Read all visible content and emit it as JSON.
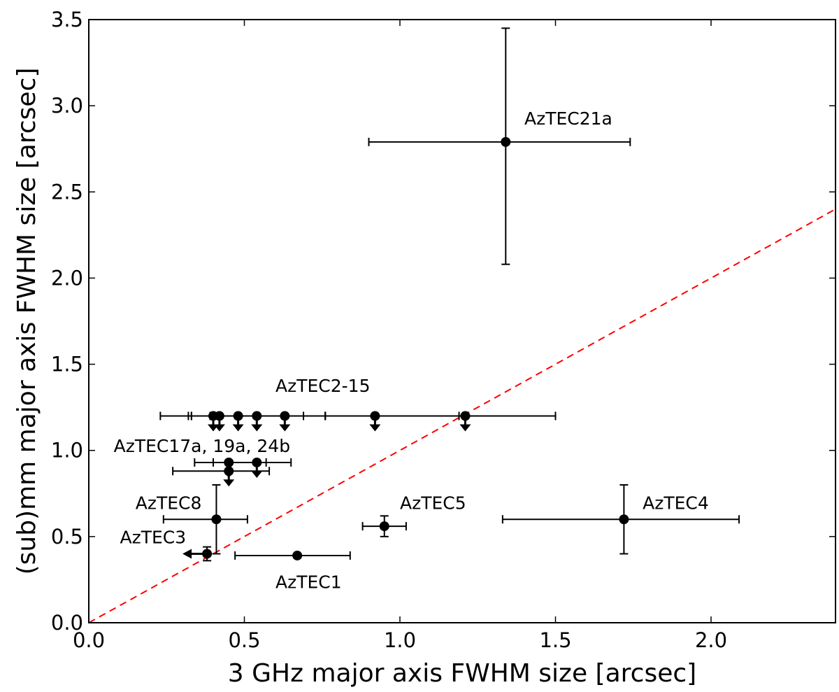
{
  "chart_data": {
    "type": "scatter",
    "xlabel": "3 GHz major axis FWHM size [arcsec]",
    "ylabel": "(sub)mm major axis FWHM size [arcsec]",
    "xlim": [
      0.0,
      2.4
    ],
    "ylim": [
      0.0,
      3.5
    ],
    "x_ticks": [
      "0.0",
      "0.5",
      "1.0",
      "1.5",
      "2.0"
    ],
    "y_ticks": [
      "0.0",
      "0.5",
      "1.0",
      "1.5",
      "2.0",
      "2.5",
      "3.0",
      "3.5"
    ],
    "x_tick_values": [
      0.0,
      0.5,
      1.0,
      1.5,
      2.0
    ],
    "y_tick_values": [
      0.0,
      0.5,
      1.0,
      1.5,
      2.0,
      2.5,
      3.0,
      3.5
    ],
    "reference_line": {
      "style": "dashed",
      "color": "#ff0000",
      "x": [
        0.0,
        2.4
      ],
      "y": [
        0.0,
        2.4
      ]
    },
    "points": [
      {
        "x": 1.34,
        "y": 2.79,
        "xerr": [
          0.44,
          0.4
        ],
        "yerr": [
          0.71,
          0.66
        ],
        "upper_limit": false,
        "left_limit": false
      },
      {
        "x": 1.72,
        "y": 0.6,
        "xerr": [
          0.39,
          0.37
        ],
        "yerr": [
          0.2,
          0.2
        ],
        "upper_limit": false,
        "left_limit": false
      },
      {
        "x": 0.95,
        "y": 0.56,
        "xerr": [
          0.07,
          0.07
        ],
        "yerr": [
          0.06,
          0.06
        ],
        "upper_limit": false,
        "left_limit": false
      },
      {
        "x": 0.41,
        "y": 0.6,
        "xerr": [
          0.17,
          0.1
        ],
        "yerr": [
          0.2,
          0.2
        ],
        "upper_limit": false,
        "left_limit": false
      },
      {
        "x": 0.67,
        "y": 0.39,
        "xerr": [
          0.2,
          0.17
        ],
        "yerr": [
          0.0,
          0.0
        ],
        "upper_limit": false,
        "left_limit": false
      },
      {
        "x": 0.38,
        "y": 0.4,
        "xerr": [
          0.0,
          0.0
        ],
        "yerr": [
          0.04,
          0.04
        ],
        "upper_limit": false,
        "left_limit": true
      },
      {
        "x": 0.4,
        "y": 1.2,
        "xerr": [
          0.17,
          0.14
        ],
        "yerr": [
          0.0,
          0.0
        ],
        "upper_limit": true,
        "left_limit": false
      },
      {
        "x": 0.42,
        "y": 1.2,
        "xerr": [
          0.1,
          0.12
        ],
        "yerr": [
          0.0,
          0.0
        ],
        "upper_limit": true,
        "left_limit": false
      },
      {
        "x": 0.48,
        "y": 1.2,
        "xerr": [
          0.15,
          0.15
        ],
        "yerr": [
          0.0,
          0.0
        ],
        "upper_limit": true,
        "left_limit": false
      },
      {
        "x": 0.54,
        "y": 1.2,
        "xerr": [
          0.15,
          0.15
        ],
        "yerr": [
          0.0,
          0.0
        ],
        "upper_limit": true,
        "left_limit": false
      },
      {
        "x": 0.63,
        "y": 1.2,
        "xerr": [
          0.3,
          0.13
        ],
        "yerr": [
          0.0,
          0.0
        ],
        "upper_limit": true,
        "left_limit": false
      },
      {
        "x": 0.92,
        "y": 1.2,
        "xerr": [
          0.16,
          0.27
        ],
        "yerr": [
          0.0,
          0.0
        ],
        "upper_limit": true,
        "left_limit": false
      },
      {
        "x": 1.21,
        "y": 1.2,
        "xerr": [
          0.45,
          0.29
        ],
        "yerr": [
          0.0,
          0.0
        ],
        "upper_limit": true,
        "left_limit": false
      },
      {
        "x": 0.45,
        "y": 0.93,
        "xerr": [
          0.11,
          0.12
        ],
        "yerr": [
          0.0,
          0.0
        ],
        "upper_limit": true,
        "left_limit": false
      },
      {
        "x": 0.54,
        "y": 0.93,
        "xerr": [
          0.14,
          0.11
        ],
        "yerr": [
          0.0,
          0.0
        ],
        "upper_limit": true,
        "left_limit": false
      },
      {
        "x": 0.45,
        "y": 0.88,
        "xerr": [
          0.18,
          0.13
        ],
        "yerr": [
          0.0,
          0.0
        ],
        "upper_limit": true,
        "left_limit": false
      }
    ],
    "annotations": [
      {
        "text": "AzTEC21a",
        "x": 1.4,
        "y": 2.89
      },
      {
        "text": "AzTEC4",
        "x": 1.78,
        "y": 0.66
      },
      {
        "text": "AzTEC5",
        "x": 1.0,
        "y": 0.66
      },
      {
        "text": "AzTEC8",
        "x": 0.15,
        "y": 0.66
      },
      {
        "text": "AzTEC3",
        "x": 0.1,
        "y": 0.46
      },
      {
        "text": "AzTEC1",
        "x": 0.6,
        "y": 0.2
      },
      {
        "text": "AzTEC2-15",
        "x": 0.6,
        "y": 1.34
      },
      {
        "text": "AzTEC17a, 19a, 24b",
        "x": 0.08,
        "y": 0.99
      }
    ]
  }
}
